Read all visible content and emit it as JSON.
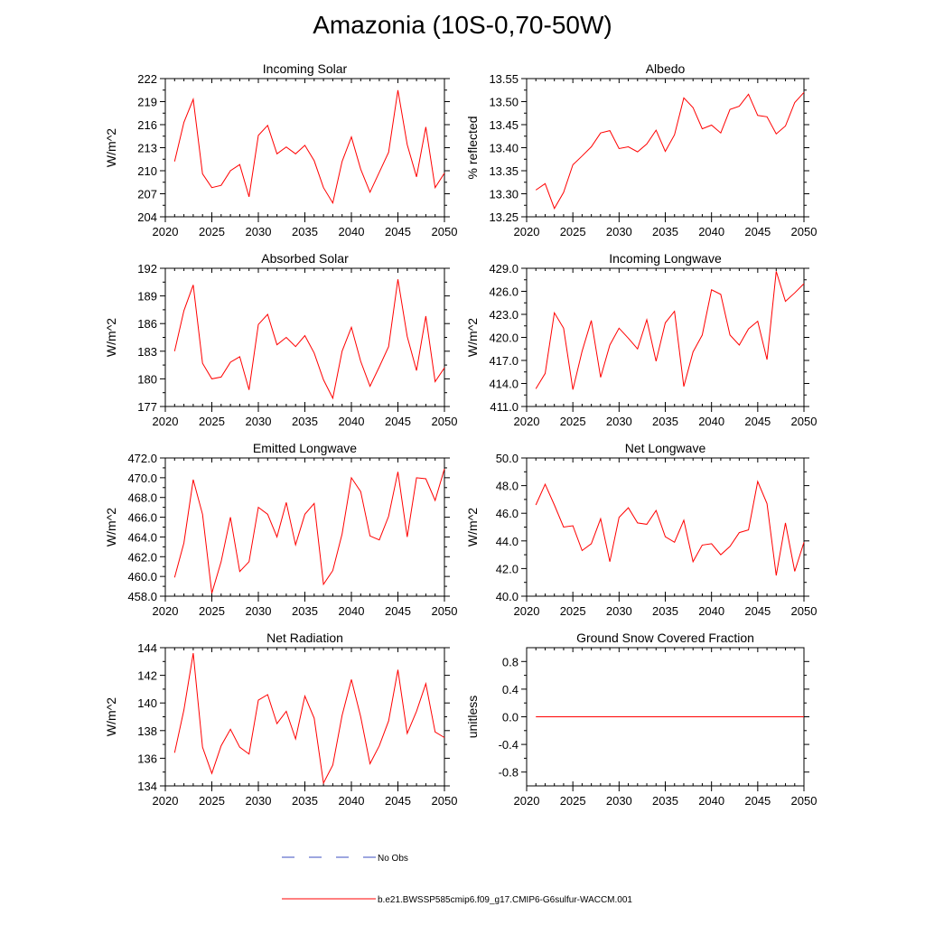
{
  "title": "Amazonia (10S-0,70-50W)",
  "legend": {
    "entries": [
      {
        "label": "No Obs",
        "color": "#3b4cc0",
        "style": "dashed"
      },
      {
        "label": "b.e21.BWSSP585cmip6.f09_g17.CMIP6-G6sulfur-WACCM.001",
        "color": "#ff0000",
        "style": "solid"
      }
    ]
  },
  "colors": {
    "series": "#ff0000",
    "obs": "#3b4cc0",
    "axis": "#000000"
  },
  "chart_data": [
    {
      "type": "line",
      "title": "Incoming Solar",
      "ylabel": "W/m^2",
      "xlim": [
        2020,
        2050
      ],
      "ylim": [
        204,
        222
      ],
      "xticks": [
        2020,
        2025,
        2030,
        2035,
        2040,
        2045,
        2050
      ],
      "yticks": [
        204,
        207,
        210,
        213,
        216,
        219,
        222
      ],
      "ytick_labels": [
        "204",
        "207",
        "210",
        "213",
        "216",
        "219",
        "222"
      ],
      "x": [
        2021,
        2022,
        2023,
        2024,
        2025,
        2026,
        2027,
        2028,
        2029,
        2030,
        2031,
        2032,
        2033,
        2034,
        2035,
        2036,
        2037,
        2038,
        2039,
        2040,
        2041,
        2042,
        2043,
        2044,
        2045,
        2046,
        2047,
        2048,
        2049,
        2050
      ],
      "values": [
        211.2,
        216.3,
        219.3,
        209.6,
        207.8,
        208.1,
        210.0,
        210.8,
        206.6,
        214.6,
        215.9,
        212.2,
        213.1,
        212.2,
        213.3,
        211.3,
        207.8,
        205.8,
        211.2,
        214.4,
        210.2,
        207.2,
        209.8,
        212.4,
        220.5,
        213.4,
        209.2,
        215.7,
        207.8,
        209.7
      ]
    },
    {
      "type": "line",
      "title": "Albedo",
      "ylabel": "% reflected",
      "xlim": [
        2020,
        2050
      ],
      "ylim": [
        13.25,
        13.55
      ],
      "xticks": [
        2020,
        2025,
        2030,
        2035,
        2040,
        2045,
        2050
      ],
      "yticks": [
        13.25,
        13.3,
        13.35,
        13.4,
        13.45,
        13.5,
        13.55
      ],
      "ytick_labels": [
        "13.25",
        "13.30",
        "13.35",
        "13.40",
        "13.45",
        "13.50",
        "13.55"
      ],
      "x": [
        2021,
        2022,
        2023,
        2024,
        2025,
        2026,
        2027,
        2028,
        2029,
        2030,
        2031,
        2032,
        2033,
        2034,
        2035,
        2036,
        2037,
        2038,
        2039,
        2040,
        2041,
        2042,
        2043,
        2044,
        2045,
        2046,
        2047,
        2048,
        2049,
        2050
      ],
      "values": [
        13.308,
        13.322,
        13.268,
        13.303,
        13.363,
        13.382,
        13.402,
        13.432,
        13.437,
        13.398,
        13.402,
        13.391,
        13.408,
        13.438,
        13.392,
        13.428,
        13.508,
        13.487,
        13.441,
        13.449,
        13.432,
        13.483,
        13.49,
        13.516,
        13.47,
        13.467,
        13.43,
        13.447,
        13.498,
        13.52
      ]
    },
    {
      "type": "line",
      "title": "Absorbed Solar",
      "ylabel": "W/m^2",
      "xlim": [
        2020,
        2050
      ],
      "ylim": [
        177,
        192
      ],
      "xticks": [
        2020,
        2025,
        2030,
        2035,
        2040,
        2045,
        2050
      ],
      "yticks": [
        177,
        180,
        183,
        186,
        189,
        192
      ],
      "ytick_labels": [
        "177",
        "180",
        "183",
        "186",
        "189",
        "192"
      ],
      "x": [
        2021,
        2022,
        2023,
        2024,
        2025,
        2026,
        2027,
        2028,
        2029,
        2030,
        2031,
        2032,
        2033,
        2034,
        2035,
        2036,
        2037,
        2038,
        2039,
        2040,
        2041,
        2042,
        2043,
        2044,
        2045,
        2046,
        2047,
        2048,
        2049,
        2050
      ],
      "values": [
        183.0,
        187.4,
        190.2,
        181.7,
        180.0,
        180.2,
        181.8,
        182.4,
        178.8,
        185.9,
        187.0,
        183.7,
        184.5,
        183.5,
        184.7,
        182.8,
        179.9,
        177.9,
        183.0,
        185.6,
        181.9,
        179.2,
        181.3,
        183.5,
        190.8,
        184.6,
        180.9,
        186.8,
        179.7,
        181.2
      ]
    },
    {
      "type": "line",
      "title": "Incoming Longwave",
      "ylabel": "W/m^2",
      "xlim": [
        2020,
        2050
      ],
      "ylim": [
        411,
        429
      ],
      "xticks": [
        2020,
        2025,
        2030,
        2035,
        2040,
        2045,
        2050
      ],
      "yticks": [
        411,
        414,
        417,
        420,
        423,
        426,
        429
      ],
      "ytick_labels": [
        "411.0",
        "414.0",
        "417.0",
        "420.0",
        "423.0",
        "426.0",
        "429.0"
      ],
      "x": [
        2021,
        2022,
        2023,
        2024,
        2025,
        2026,
        2027,
        2028,
        2029,
        2030,
        2031,
        2032,
        2033,
        2034,
        2035,
        2036,
        2037,
        2038,
        2039,
        2040,
        2041,
        2042,
        2043,
        2044,
        2045,
        2046,
        2047,
        2048,
        2049,
        2050
      ],
      "values": [
        413.3,
        415.3,
        423.2,
        421.2,
        413.2,
        418.2,
        422.2,
        414.8,
        419.0,
        421.2,
        419.9,
        418.5,
        422.3,
        416.9,
        421.9,
        423.4,
        413.6,
        418.1,
        420.3,
        426.2,
        425.6,
        420.3,
        419.0,
        421.1,
        422.1,
        417.1,
        428.6,
        424.7,
        425.8,
        427.0
      ]
    },
    {
      "type": "line",
      "title": "Emitted Longwave",
      "ylabel": "W/m^2",
      "xlim": [
        2020,
        2050
      ],
      "ylim": [
        458,
        472
      ],
      "xticks": [
        2020,
        2025,
        2030,
        2035,
        2040,
        2045,
        2050
      ],
      "yticks": [
        458,
        460,
        462,
        464,
        466,
        468,
        470,
        472
      ],
      "ytick_labels": [
        "458.0",
        "460.0",
        "462.0",
        "464.0",
        "466.0",
        "468.0",
        "470.0",
        "472.0"
      ],
      "x": [
        2021,
        2022,
        2023,
        2024,
        2025,
        2026,
        2027,
        2028,
        2029,
        2030,
        2031,
        2032,
        2033,
        2034,
        2035,
        2036,
        2037,
        2038,
        2039,
        2040,
        2041,
        2042,
        2043,
        2044,
        2045,
        2046,
        2047,
        2048,
        2049,
        2050
      ],
      "values": [
        459.9,
        463.4,
        469.8,
        466.3,
        458.3,
        461.5,
        466.0,
        460.5,
        461.5,
        467.0,
        466.3,
        464.0,
        467.5,
        463.2,
        466.3,
        467.4,
        459.2,
        460.6,
        464.3,
        470.0,
        468.6,
        464.1,
        463.7,
        466.1,
        470.6,
        464.0,
        470.0,
        469.9,
        467.7,
        470.9
      ]
    },
    {
      "type": "line",
      "title": "Net Longwave",
      "ylabel": "W/m^2",
      "xlim": [
        2020,
        2050
      ],
      "ylim": [
        40,
        50
      ],
      "xticks": [
        2020,
        2025,
        2030,
        2035,
        2040,
        2045,
        2050
      ],
      "yticks": [
        40,
        42,
        44,
        46,
        48,
        50
      ],
      "ytick_labels": [
        "40.0",
        "42.0",
        "44.0",
        "46.0",
        "48.0",
        "50.0"
      ],
      "x": [
        2021,
        2022,
        2023,
        2024,
        2025,
        2026,
        2027,
        2028,
        2029,
        2030,
        2031,
        2032,
        2033,
        2034,
        2035,
        2036,
        2037,
        2038,
        2039,
        2040,
        2041,
        2042,
        2043,
        2044,
        2045,
        2046,
        2047,
        2048,
        2049,
        2050
      ],
      "values": [
        46.6,
        48.1,
        46.6,
        45.0,
        45.1,
        43.3,
        43.8,
        45.6,
        42.5,
        45.7,
        46.4,
        45.3,
        45.2,
        46.2,
        44.3,
        43.9,
        45.5,
        42.5,
        43.7,
        43.8,
        43.0,
        43.6,
        44.6,
        44.8,
        48.3,
        46.7,
        41.5,
        45.3,
        41.8,
        43.9
      ]
    },
    {
      "type": "line",
      "title": "Net Radiation",
      "ylabel": "W/m^2",
      "xlim": [
        2020,
        2050
      ],
      "ylim": [
        134,
        144
      ],
      "xticks": [
        2020,
        2025,
        2030,
        2035,
        2040,
        2045,
        2050
      ],
      "yticks": [
        134,
        136,
        138,
        140,
        142,
        144
      ],
      "ytick_labels": [
        "134",
        "136",
        "138",
        "140",
        "142",
        "144"
      ],
      "x": [
        2021,
        2022,
        2023,
        2024,
        2025,
        2026,
        2027,
        2028,
        2029,
        2030,
        2031,
        2032,
        2033,
        2034,
        2035,
        2036,
        2037,
        2038,
        2039,
        2040,
        2041,
        2042,
        2043,
        2044,
        2045,
        2046,
        2047,
        2048,
        2049,
        2050
      ],
      "values": [
        136.4,
        139.5,
        143.6,
        136.8,
        134.9,
        136.9,
        138.1,
        136.8,
        136.3,
        140.2,
        140.6,
        138.5,
        139.4,
        137.4,
        140.5,
        138.9,
        134.2,
        135.5,
        139.1,
        141.7,
        139.0,
        135.6,
        136.9,
        138.7,
        142.4,
        137.8,
        139.4,
        141.4,
        137.9,
        137.5
      ]
    },
    {
      "type": "line",
      "title": "Ground Snow Covered Fraction",
      "ylabel": "unitless",
      "xlim": [
        2020,
        2050
      ],
      "ylim": [
        -1.0,
        1.0
      ],
      "xticks": [
        2020,
        2025,
        2030,
        2035,
        2040,
        2045,
        2050
      ],
      "yticks": [
        -0.8,
        -0.4,
        0.0,
        0.4,
        0.8
      ],
      "ytick_labels": [
        "-0.8",
        "-0.4",
        "0.0",
        "0.4",
        "0.8"
      ],
      "x": [
        2021,
        2022,
        2023,
        2024,
        2025,
        2026,
        2027,
        2028,
        2029,
        2030,
        2031,
        2032,
        2033,
        2034,
        2035,
        2036,
        2037,
        2038,
        2039,
        2040,
        2041,
        2042,
        2043,
        2044,
        2045,
        2046,
        2047,
        2048,
        2049,
        2050
      ],
      "values": [
        0,
        0,
        0,
        0,
        0,
        0,
        0,
        0,
        0,
        0,
        0,
        0,
        0,
        0,
        0,
        0,
        0,
        0,
        0,
        0,
        0,
        0,
        0,
        0,
        0,
        0,
        0,
        0,
        0,
        0
      ]
    }
  ]
}
